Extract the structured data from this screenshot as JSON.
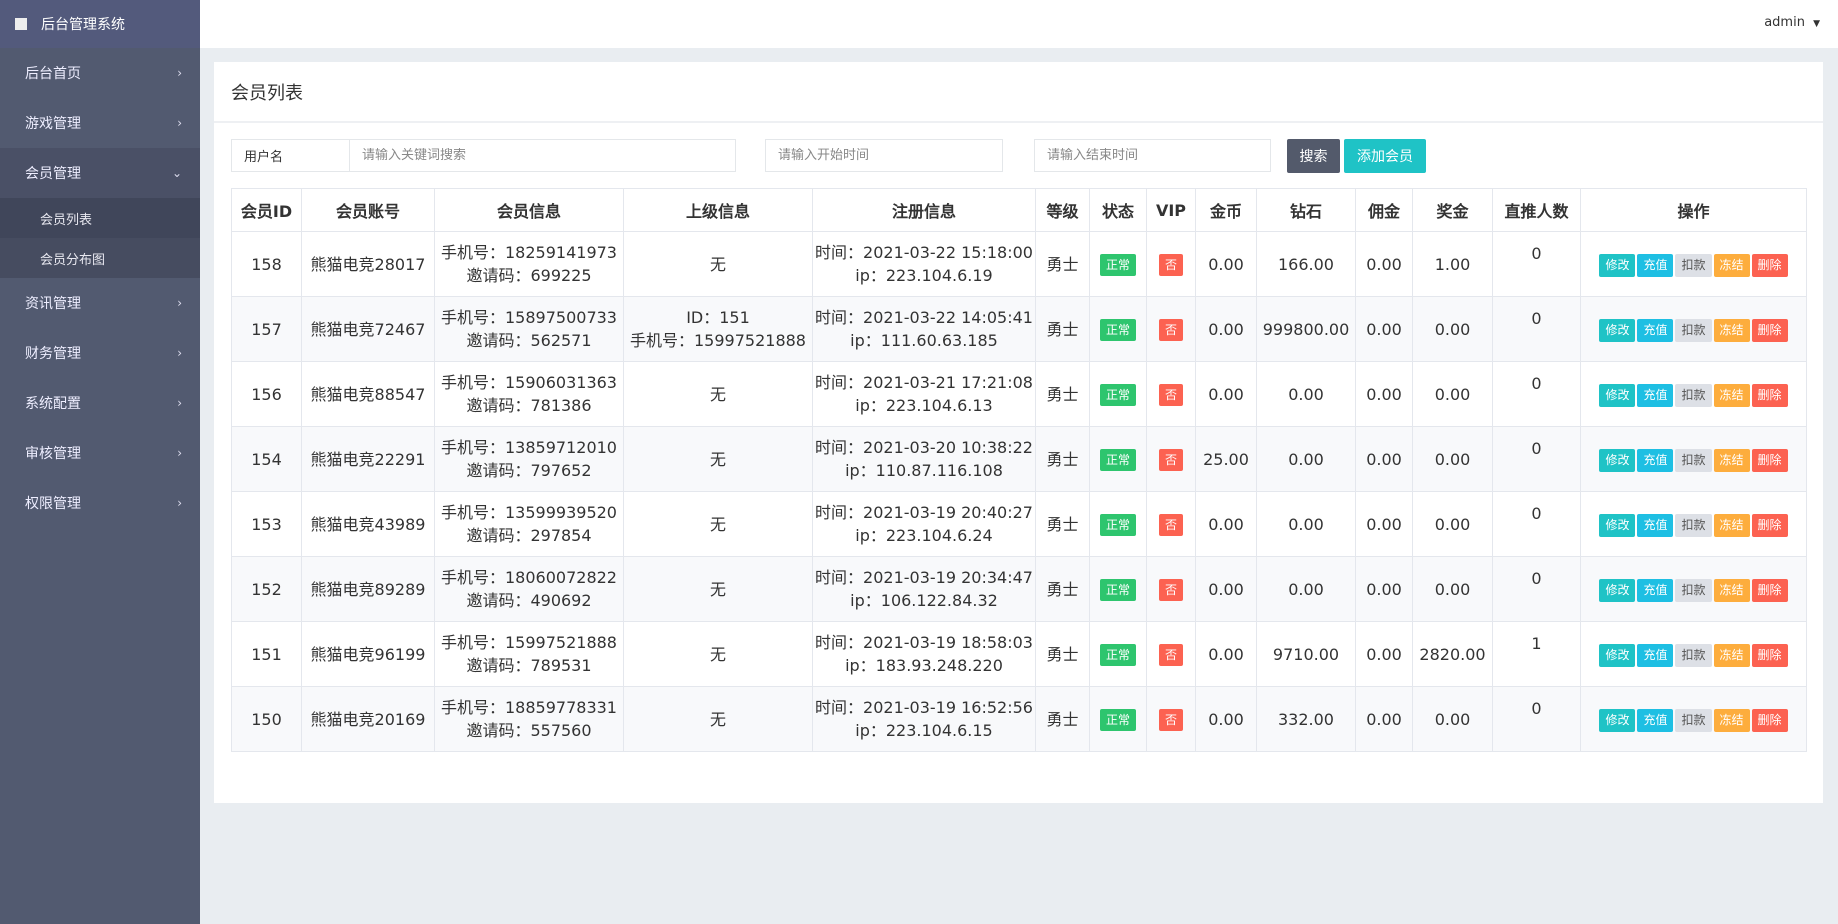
{
  "app": {
    "title": "后台管理系统",
    "user": "admin"
  },
  "sidebar": {
    "items": [
      {
        "label": "后台首页"
      },
      {
        "label": "游戏管理"
      },
      {
        "label": "会员管理",
        "open": true,
        "children": [
          {
            "label": "会员列表",
            "active": true
          },
          {
            "label": "会员分布图"
          }
        ]
      },
      {
        "label": "资讯管理"
      },
      {
        "label": "财务管理"
      },
      {
        "label": "系统配置"
      },
      {
        "label": "审核管理"
      },
      {
        "label": "权限管理"
      }
    ]
  },
  "page": {
    "title": "会员列表"
  },
  "filters": {
    "field_label": "用户名",
    "keyword_placeholder": "请输入关键词搜索",
    "start_placeholder": "请输入开始时间",
    "end_placeholder": "请输入结束时间",
    "search_label": "搜索",
    "add_label": "添加会员"
  },
  "colors": {
    "search": "#535a6b",
    "add": "#1fc3c6",
    "status_ok": "#2ec56e",
    "vip_no": "#fc6251",
    "edit": "#1fc3c6",
    "recharge": "#1ebfe3",
    "deduct": "#dde0e6",
    "freeze": "#fdad3d",
    "delete": "#fc6251"
  },
  "table": {
    "headers": [
      "会员ID",
      "会员账号",
      "会员信息",
      "上级信息",
      "注册信息",
      "等级",
      "状态",
      "VIP",
      "金币",
      "钻石",
      "佣金",
      "奖金",
      "直推人数",
      "操作"
    ],
    "actions": [
      "修改",
      "充值",
      "扣款",
      "冻结",
      "删除"
    ],
    "rows": [
      {
        "id": "158",
        "account": "熊猫电竞28017",
        "phone": "手机号：18259141973",
        "invite": "邀请码：699225",
        "parent1": "无",
        "parent2": "",
        "time": "时间：2021-03-22 15:18:00",
        "ip": "ip：223.104.6.19",
        "level": "勇士",
        "status": "正常",
        "vip": "否",
        "gold": "0.00",
        "diamond": "166.00",
        "commission": "0.00",
        "bonus": "1.00",
        "direct": "0"
      },
      {
        "id": "157",
        "account": "熊猫电竞72467",
        "phone": "手机号：15897500733",
        "invite": "邀请码：562571",
        "parent1": "ID：151",
        "parent2": "手机号：15997521888",
        "time": "时间：2021-03-22 14:05:41",
        "ip": "ip：111.60.63.185",
        "level": "勇士",
        "status": "正常",
        "vip": "否",
        "gold": "0.00",
        "diamond": "999800.00",
        "commission": "0.00",
        "bonus": "0.00",
        "direct": "0"
      },
      {
        "id": "156",
        "account": "熊猫电竞88547",
        "phone": "手机号：15906031363",
        "invite": "邀请码：781386",
        "parent1": "无",
        "parent2": "",
        "time": "时间：2021-03-21 17:21:08",
        "ip": "ip：223.104.6.13",
        "level": "勇士",
        "status": "正常",
        "vip": "否",
        "gold": "0.00",
        "diamond": "0.00",
        "commission": "0.00",
        "bonus": "0.00",
        "direct": "0"
      },
      {
        "id": "154",
        "account": "熊猫电竞22291",
        "phone": "手机号：13859712010",
        "invite": "邀请码：797652",
        "parent1": "无",
        "parent2": "",
        "time": "时间：2021-03-20 10:38:22",
        "ip": "ip：110.87.116.108",
        "level": "勇士",
        "status": "正常",
        "vip": "否",
        "gold": "25.00",
        "diamond": "0.00",
        "commission": "0.00",
        "bonus": "0.00",
        "direct": "0"
      },
      {
        "id": "153",
        "account": "熊猫电竞43989",
        "phone": "手机号：13599939520",
        "invite": "邀请码：297854",
        "parent1": "无",
        "parent2": "",
        "time": "时间：2021-03-19 20:40:27",
        "ip": "ip：223.104.6.24",
        "level": "勇士",
        "status": "正常",
        "vip": "否",
        "gold": "0.00",
        "diamond": "0.00",
        "commission": "0.00",
        "bonus": "0.00",
        "direct": "0"
      },
      {
        "id": "152",
        "account": "熊猫电竞89289",
        "phone": "手机号：18060072822",
        "invite": "邀请码：490692",
        "parent1": "无",
        "parent2": "",
        "time": "时间：2021-03-19 20:34:47",
        "ip": "ip：106.122.84.32",
        "level": "勇士",
        "status": "正常",
        "vip": "否",
        "gold": "0.00",
        "diamond": "0.00",
        "commission": "0.00",
        "bonus": "0.00",
        "direct": "0"
      },
      {
        "id": "151",
        "account": "熊猫电竞96199",
        "phone": "手机号：15997521888",
        "invite": "邀请码：789531",
        "parent1": "无",
        "parent2": "",
        "time": "时间：2021-03-19 18:58:03",
        "ip": "ip：183.93.248.220",
        "level": "勇士",
        "status": "正常",
        "vip": "否",
        "gold": "0.00",
        "diamond": "9710.00",
        "commission": "0.00",
        "bonus": "2820.00",
        "direct": "1"
      },
      {
        "id": "150",
        "account": "熊猫电竞20169",
        "phone": "手机号：18859778331",
        "invite": "邀请码：557560",
        "parent1": "无",
        "parent2": "",
        "time": "时间：2021-03-19 16:52:56",
        "ip": "ip：223.104.6.15",
        "level": "勇士",
        "status": "正常",
        "vip": "否",
        "gold": "0.00",
        "diamond": "332.00",
        "commission": "0.00",
        "bonus": "0.00",
        "direct": "0"
      }
    ]
  }
}
